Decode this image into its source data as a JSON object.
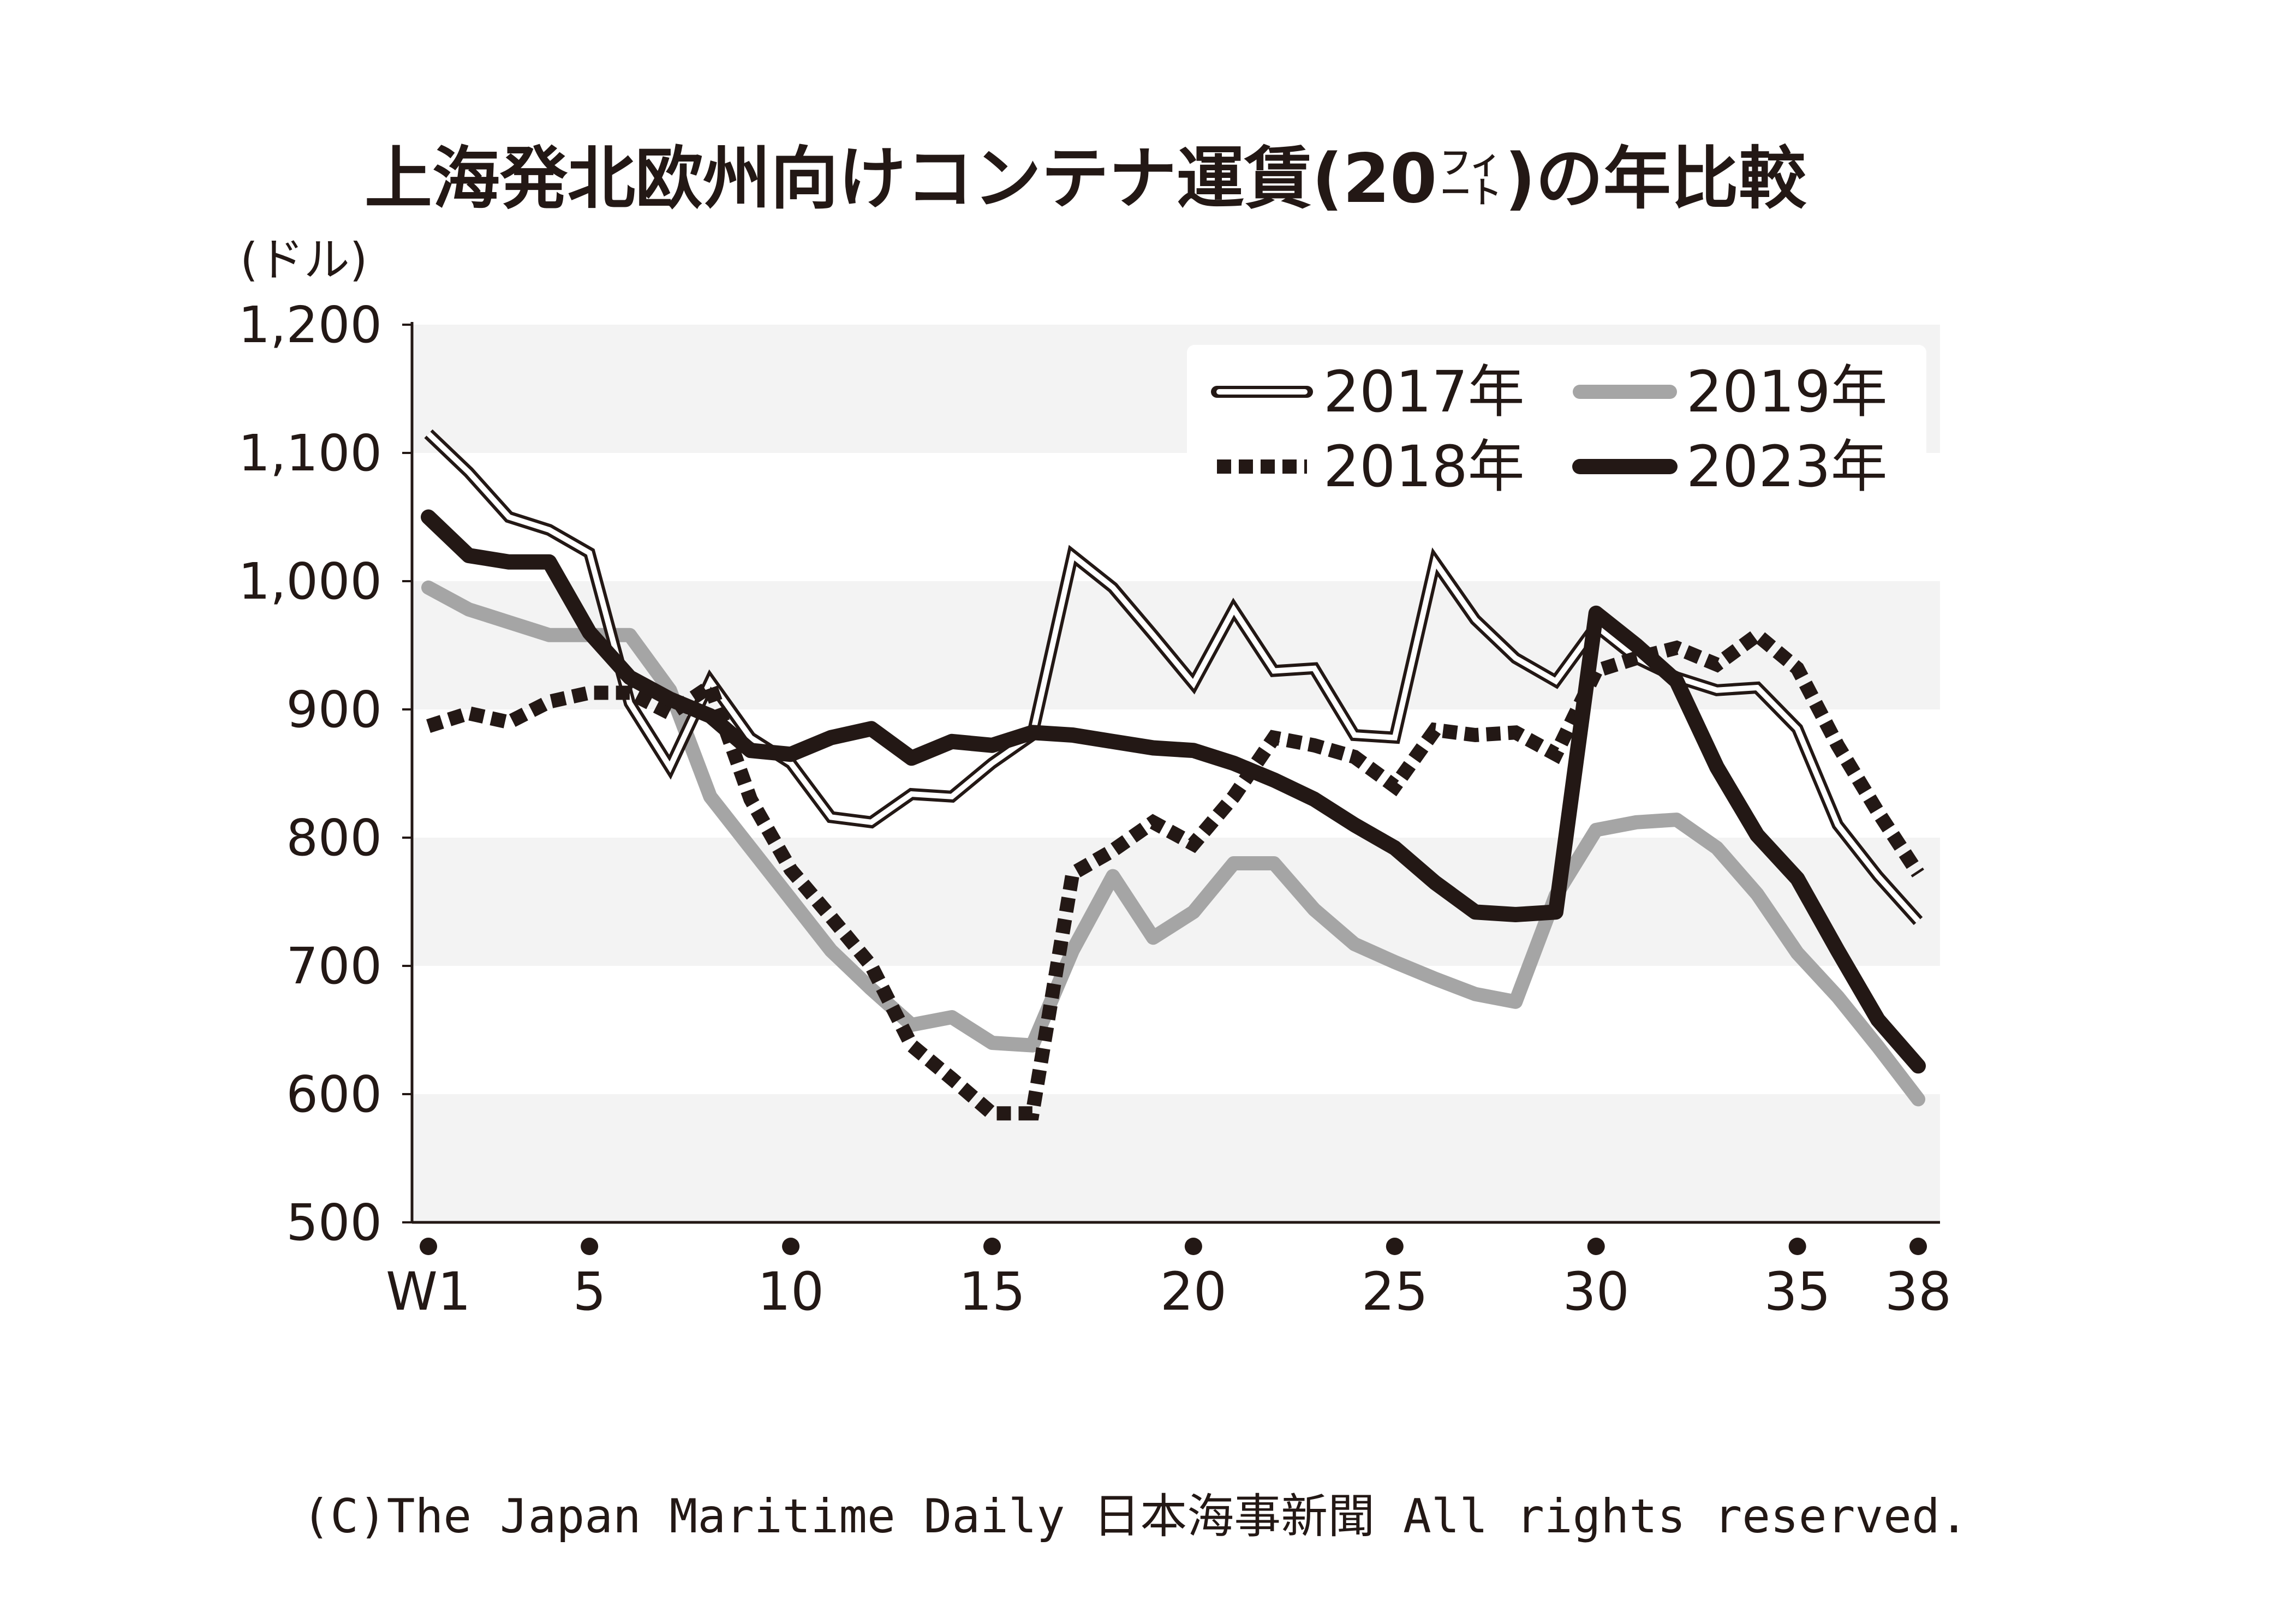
{
  "chart_data": {
    "type": "line",
    "title": "上海発北欧州向けコンテナ運賃(20フィート)の年比較",
    "title_main": "上海発北欧州向けコンテナ運賃(20",
    "title_sup_top": "フィ",
    "title_sup_bottom": "ート",
    "title_end": ")の年比較",
    "ylabel": "(ドル)",
    "ylim": [
      500,
      1200
    ],
    "yticks": [
      500,
      600,
      700,
      800,
      900,
      1000,
      1100,
      1200
    ],
    "ytick_labels": [
      "500",
      "600",
      "700",
      "800",
      "900",
      "1,000",
      "1,100",
      "1,200"
    ],
    "xlim": [
      1,
      38
    ],
    "xticks": [
      1,
      5,
      10,
      15,
      20,
      25,
      30,
      35,
      38
    ],
    "xtick_labels": [
      "W1",
      "5",
      "10",
      "15",
      "20",
      "25",
      "30",
      "35",
      "38"
    ],
    "grid": "alternating horizontal bands",
    "legend_position": "top-right",
    "x": [
      1,
      2,
      3,
      4,
      5,
      6,
      7,
      8,
      9,
      10,
      11,
      12,
      13,
      14,
      15,
      16,
      17,
      18,
      19,
      20,
      21,
      22,
      23,
      24,
      25,
      26,
      27,
      28,
      29,
      30,
      31,
      32,
      33,
      34,
      35,
      36,
      37,
      38
    ],
    "series": [
      {
        "name": "2017年",
        "style": "double",
        "color": "#231815",
        "values": [
          1115,
          1085,
          1050,
          1040,
          1022,
          905,
          855,
          922,
          878,
          858,
          816,
          812,
          834,
          832,
          858,
          880,
          1020,
          995,
          958,
          920,
          978,
          930,
          932,
          880,
          878,
          1015,
          970,
          940,
          922,
          965,
          940,
          925,
          915,
          917,
          885,
          810,
          770,
          735
        ]
      },
      {
        "name": "2018年",
        "style": "dotted",
        "color": "#231815",
        "values": [
          887,
          897,
          890,
          906,
          913,
          913,
          897,
          918,
          830,
          775,
          738,
          700,
          638,
          612,
          585,
          585,
          772,
          790,
          812,
          795,
          832,
          878,
          872,
          863,
          840,
          884,
          880,
          882,
          865,
          930,
          940,
          948,
          935,
          958,
          932,
          872,
          820,
          772
        ]
      },
      {
        "name": "2019年",
        "style": "solid-gray",
        "color": "#a5a5a5",
        "values": [
          995,
          978,
          968,
          958,
          958,
          958,
          915,
          832,
          792,
          752,
          712,
          682,
          654,
          660,
          640,
          638,
          712,
          770,
          722,
          742,
          780,
          780,
          744,
          717,
          703,
          690,
          678,
          672,
          755,
          806,
          812,
          814,
          792,
          756,
          710,
          676,
          637,
          596
        ]
      },
      {
        "name": "2023年",
        "style": "solid-black",
        "color": "#231815",
        "values": [
          1050,
          1020,
          1015,
          1015,
          960,
          925,
          908,
          895,
          868,
          865,
          878,
          885,
          862,
          875,
          872,
          882,
          880,
          875,
          870,
          868,
          858,
          845,
          830,
          810,
          792,
          765,
          742,
          740,
          742,
          975,
          950,
          922,
          855,
          802,
          768,
          712,
          658,
          622
        ]
      }
    ]
  },
  "copyright": "(C)The Japan Maritime Daily 日本海事新聞 All rights reserved."
}
